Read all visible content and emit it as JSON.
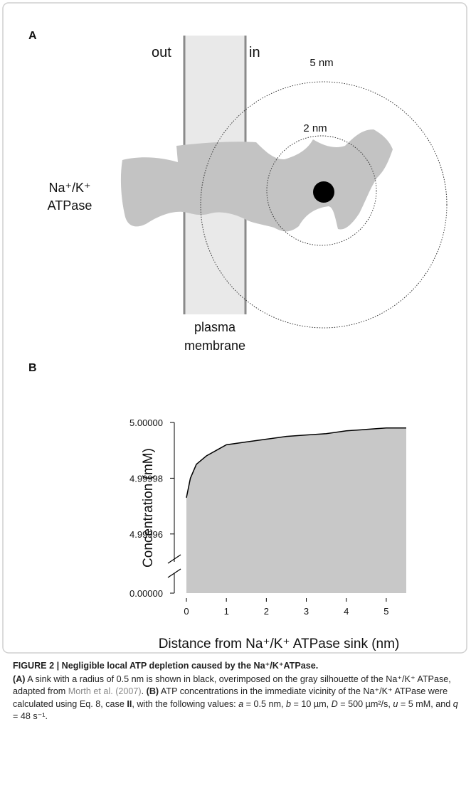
{
  "panel_a": {
    "label": "A",
    "out_label": "out",
    "in_label": "in",
    "outer_circle_label": "5 nm",
    "inner_circle_label": "2 nm",
    "protein_label_line1": "Na⁺/K⁺",
    "protein_label_line2": "ATPase",
    "membrane_label_line1": "plasma",
    "membrane_label_line2": "membrane"
  },
  "panel_b_label": "B",
  "chart_data": {
    "type": "area",
    "xlabel": "Distance from Na⁺/K⁺ ATPase sink (nm)",
    "ylabel": "Concentration (mM)",
    "x": [
      0,
      0.1,
      0.25,
      0.5,
      0.75,
      1,
      1.5,
      2,
      2.5,
      3,
      3.5,
      4,
      4.5,
      5,
      5.5
    ],
    "values": [
      4.999973,
      4.99998,
      4.999985,
      4.999988,
      4.99999,
      4.999992,
      4.999993,
      4.999994,
      4.999995,
      4.9999955,
      4.999996,
      4.999997,
      4.9999975,
      4.999998,
      4.999998
    ],
    "color": "#c8c8c8",
    "line_color": "#000000",
    "xlim": [
      0,
      5.5
    ],
    "xticks": [
      0,
      1,
      2,
      3,
      4,
      5
    ],
    "ylim": [
      0,
      5.0
    ],
    "ybreak": [
      0,
      4.99995
    ],
    "yticks": [
      {
        "value": 0,
        "label": "0.00000"
      },
      4.99996,
      4.99998,
      {
        "value": 5.0,
        "label": "5.00000"
      }
    ]
  },
  "caption": {
    "title": "FIGURE 2 | Negligible local ATP depletion caused by the Na⁺/K⁺ATPase.",
    "parts": [
      "(A)",
      " A sink with a radius of 0.5 nm is shown in black, overimposed on the gray silhouette of the Na⁺/K⁺ ATPase, adapted from ",
      "Morth et al. (2007)",
      ". ",
      "(B)",
      " ATP concentrations in the immediate vicinity of the Na⁺/K⁺ ATPase were calculated using Eq. 8, case ",
      "II",
      ", with the following values: ",
      "a",
      " = 0.5 nm, ",
      "b",
      " = 10 µm, ",
      "D",
      " = 500 µm²/s, ",
      "u",
      " = 5 mM, and ",
      "q",
      " = 48 s⁻¹."
    ]
  }
}
